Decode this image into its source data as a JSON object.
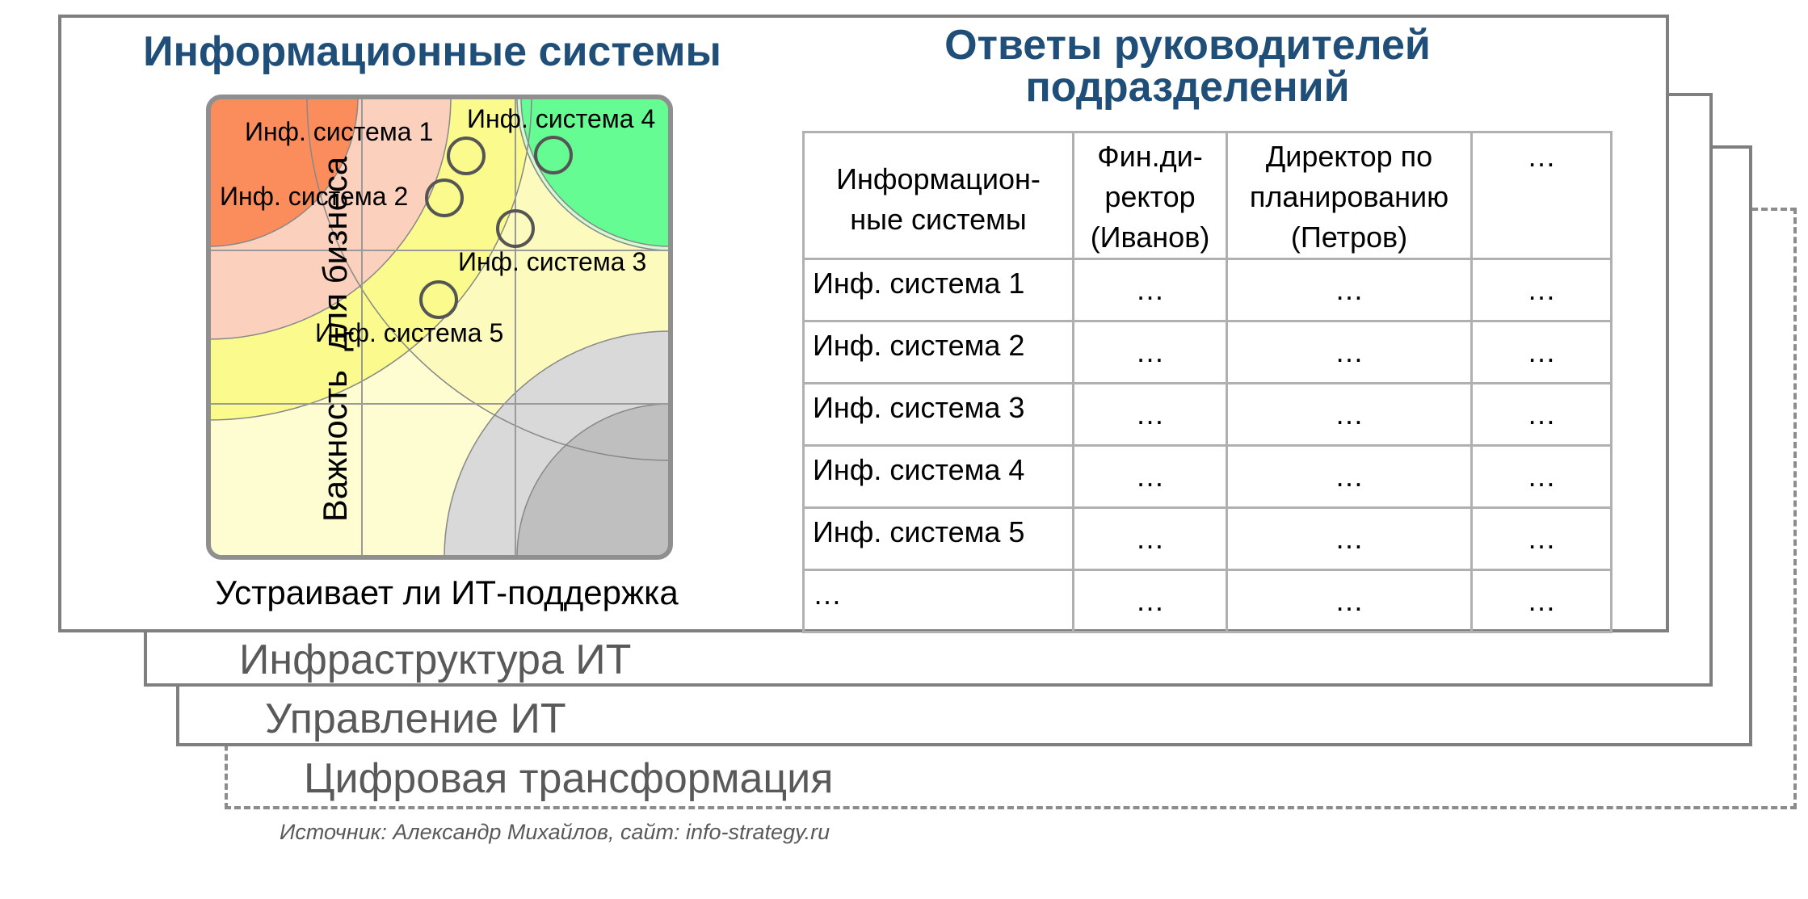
{
  "layers": {
    "digital": "Цифровая трансформация",
    "management": "Управление ИТ",
    "infrastructure": "Инфраструктура ИТ"
  },
  "matrix": {
    "title": "Информационные системы",
    "y_axis_label": "Важность  для бизнеса",
    "x_axis_label": "Устраивает ли ИТ-поддержка",
    "points": [
      {
        "label": "Инф. система 1"
      },
      {
        "label": "Инф. система 2"
      },
      {
        "label": "Инф. система 3"
      },
      {
        "label": "Инф. система 4"
      },
      {
        "label": "Инф. система 5"
      }
    ]
  },
  "answers": {
    "title_line1": "Ответы руководителей",
    "title_line2": "подразделений",
    "headers": [
      "Информацион-\nные системы",
      "Фин.ди-\nректор\n(Иванов)",
      "Директор по\nпланированию\n(Петров)",
      "…"
    ],
    "rows": [
      [
        "Инф. система 1",
        "…",
        "…",
        "…"
      ],
      [
        "Инф. система 2",
        "…",
        "…",
        "…"
      ],
      [
        "Инф. система 3",
        "…",
        "…",
        "…"
      ],
      [
        "Инф. система 4",
        "…",
        "…",
        "…"
      ],
      [
        "Инф. система 5",
        "…",
        "…",
        "…"
      ],
      [
        "…",
        "…",
        "…",
        "…"
      ]
    ]
  },
  "source": "Источник: Александр Михайлов, сайт: info-strategy.ru"
}
